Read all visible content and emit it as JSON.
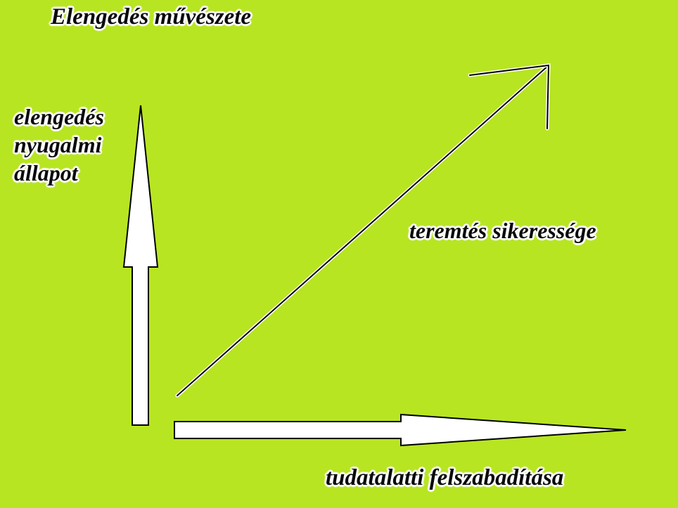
{
  "title": "Elengedés művészete",
  "vertical_axis": {
    "lines": [
      "elengedés",
      "nyugalmi",
      "állapot"
    ]
  },
  "diagonal_arrow": {
    "label": "teremtés sikeressége"
  },
  "horizontal_axis": {
    "label": "tudatalatti felszabadítása"
  },
  "colors": {
    "background": "#b7e522",
    "arrow_fill": "#ffffff",
    "arrow_stroke": "#000000",
    "text": "#0a0a0a"
  }
}
